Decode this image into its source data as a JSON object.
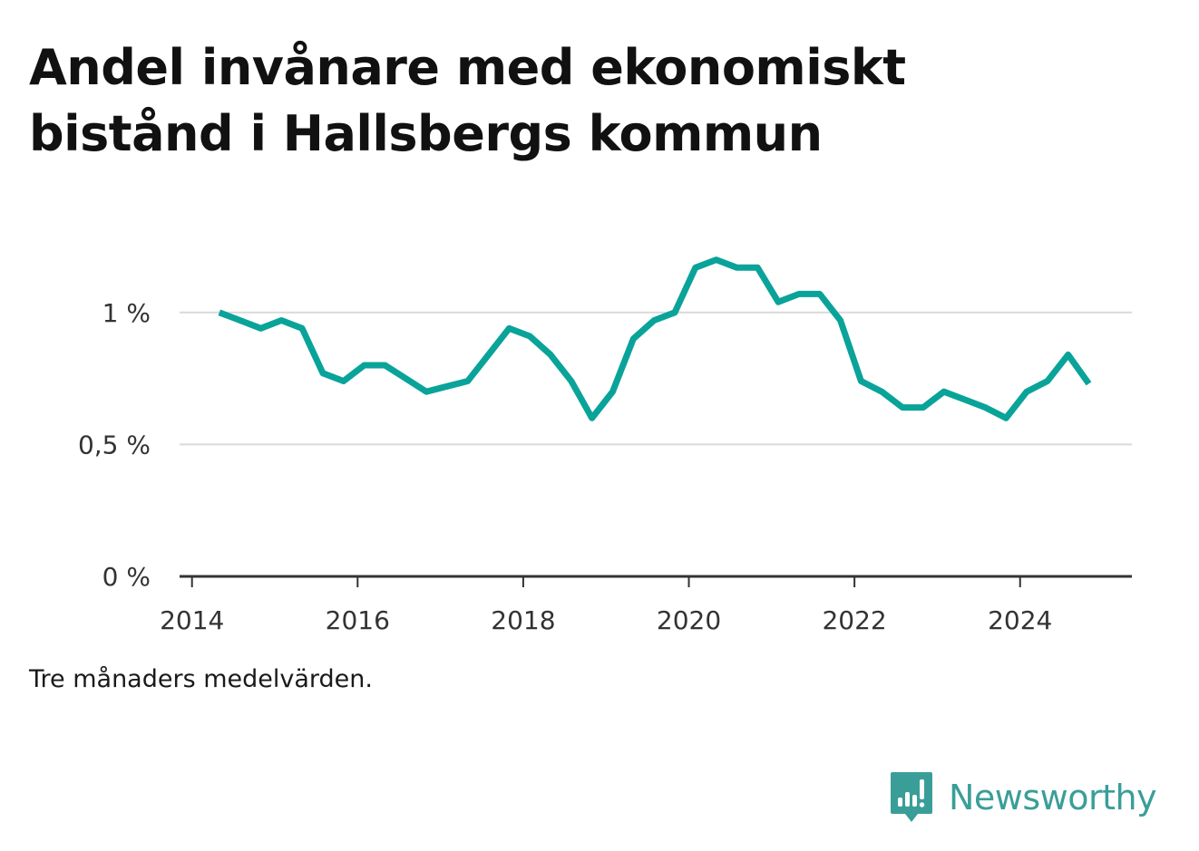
{
  "title": "Andel invånare med ekonomiskt bistånd i Hallsbergs kommun",
  "note": "Tre månaders medelvärden.",
  "brand": {
    "name": "Newsworthy",
    "icon": "bar-chart-speech-bubble-icon",
    "color": "#3a9e98"
  },
  "chart_data": {
    "type": "line",
    "line_color": "#0aa39a",
    "grid": true,
    "legend": "none",
    "ylim": [
      0,
      1.25
    ],
    "xlim": [
      2013.85,
      2025.35
    ],
    "y_ticks": [
      {
        "value": 0,
        "label": "0 %"
      },
      {
        "value": 0.5,
        "label": "0,5 %"
      },
      {
        "value": 1,
        "label": "1 %"
      }
    ],
    "x_ticks": [
      {
        "value": 2014,
        "label": "2014"
      },
      {
        "value": 2016,
        "label": "2016"
      },
      {
        "value": 2018,
        "label": "2018"
      },
      {
        "value": 2020,
        "label": "2020"
      },
      {
        "value": 2022,
        "label": "2022"
      },
      {
        "value": 2024,
        "label": "2024"
      }
    ],
    "series": [
      {
        "x": [
          2014.33,
          2014.58,
          2014.83,
          2015.08,
          2015.33,
          2015.58,
          2015.83,
          2016.08,
          2016.33,
          2016.58,
          2016.83,
          2017.08,
          2017.33,
          2017.58,
          2017.83,
          2018.08,
          2018.33,
          2018.58,
          2018.83,
          2019.08,
          2019.33,
          2019.58,
          2019.83,
          2020.08,
          2020.33,
          2020.58,
          2020.83,
          2021.08,
          2021.33,
          2021.58,
          2021.83,
          2022.08,
          2022.33,
          2022.58,
          2022.83,
          2023.08,
          2023.33,
          2023.58,
          2023.83,
          2024.08,
          2024.33,
          2024.58,
          2024.83
        ],
        "values": [
          1.0,
          0.97,
          0.94,
          0.97,
          0.94,
          0.77,
          0.74,
          0.8,
          0.8,
          0.75,
          0.7,
          0.72,
          0.74,
          0.84,
          0.94,
          0.91,
          0.84,
          0.74,
          0.6,
          0.7,
          0.9,
          0.97,
          1.0,
          1.17,
          1.2,
          1.17,
          1.17,
          1.04,
          1.07,
          1.07,
          0.97,
          0.74,
          0.7,
          0.64,
          0.64,
          0.7,
          0.67,
          0.64,
          0.6,
          0.7,
          0.74,
          0.84,
          0.73
        ]
      }
    ]
  }
}
